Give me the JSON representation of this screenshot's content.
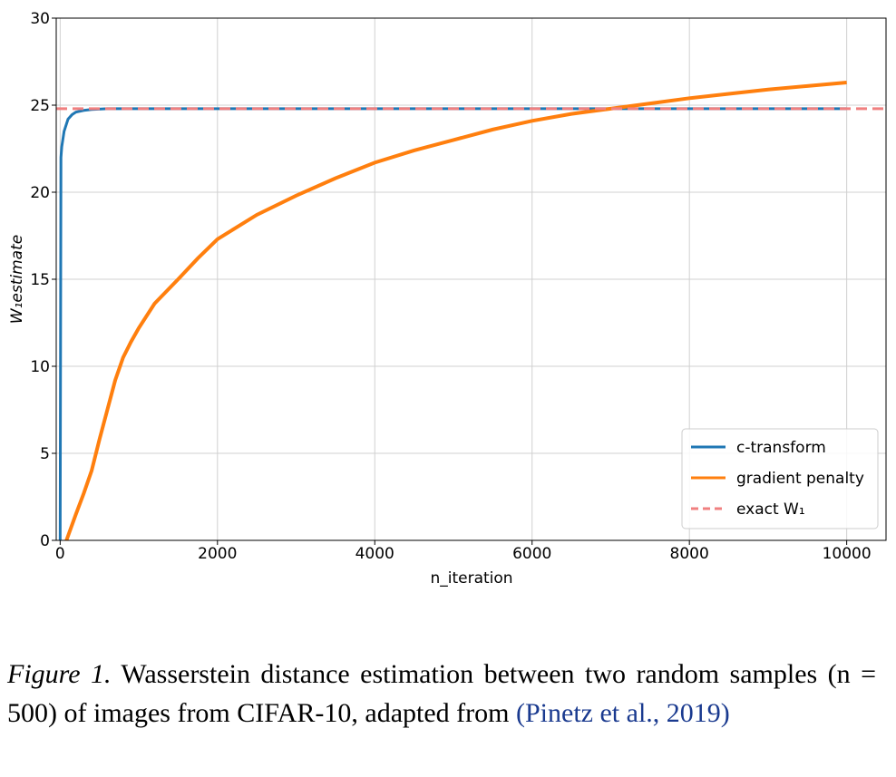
{
  "chart_data": {
    "type": "line",
    "xlabel": "n_iteration",
    "ylabel": "W₁estimate",
    "xlim": [
      -50,
      10500
    ],
    "ylim": [
      0,
      30
    ],
    "xticks": [
      0,
      2000,
      4000,
      6000,
      8000,
      10000
    ],
    "yticks": [
      0,
      5,
      10,
      15,
      20,
      25,
      30
    ],
    "grid": true,
    "legend": "lower right",
    "series": [
      {
        "name": "c-transform",
        "color": "#1f77b4",
        "x": [
          0,
          10,
          20,
          50,
          100,
          150,
          200,
          300,
          400,
          600,
          1000,
          10000
        ],
        "values": [
          0,
          22,
          22.6,
          23.5,
          24.2,
          24.45,
          24.6,
          24.7,
          24.75,
          24.8,
          24.8,
          24.8
        ]
      },
      {
        "name": "gradient penalty",
        "color": "#ff7f0e",
        "x": [
          80,
          200,
          300,
          400,
          500,
          600,
          700,
          800,
          900,
          1000,
          1200,
          1500,
          1750,
          2000,
          2500,
          3000,
          3500,
          4000,
          4500,
          5000,
          5500,
          6000,
          6500,
          7000,
          7500,
          8000,
          8500,
          9000,
          9500,
          10000
        ],
        "values": [
          0,
          1.5,
          2.7,
          4,
          5.8,
          7.5,
          9.2,
          10.5,
          11.4,
          12.2,
          13.6,
          15,
          16.2,
          17.3,
          18.7,
          19.8,
          20.8,
          21.7,
          22.4,
          23,
          23.6,
          24.1,
          24.5,
          24.8,
          25.1,
          25.4,
          25.65,
          25.9,
          26.1,
          26.3
        ]
      }
    ],
    "hline": {
      "name": "exact W₁",
      "color": "#f08080",
      "value": 24.8
    }
  },
  "caption": {
    "label": "Figure 1.",
    "text": "Wasserstein distance estimation between two random samples (n = 500) of images from CIFAR-10, adapted from",
    "citation": "(Pinetz et al., 2019)"
  }
}
